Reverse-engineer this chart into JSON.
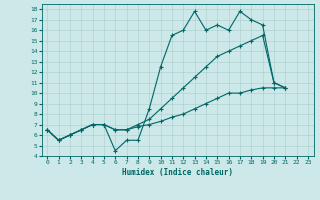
{
  "xlabel": "Humidex (Indice chaleur)",
  "bg_color": "#cce8e8",
  "line_color": "#006666",
  "grid_color": "#aacccc",
  "xlim": [
    -0.5,
    23.5
  ],
  "ylim": [
    4,
    18.5
  ],
  "yticks": [
    4,
    5,
    6,
    7,
    8,
    9,
    10,
    11,
    12,
    13,
    14,
    15,
    16,
    17,
    18
  ],
  "xticks": [
    0,
    1,
    2,
    3,
    4,
    5,
    6,
    7,
    8,
    9,
    10,
    11,
    12,
    13,
    14,
    15,
    16,
    17,
    18,
    19,
    20,
    21,
    22,
    23
  ],
  "series1_x": [
    0,
    1,
    2,
    3,
    4,
    5,
    6,
    7,
    8,
    9,
    10,
    11,
    12,
    13,
    14,
    15,
    16,
    17,
    18,
    19,
    20,
    21
  ],
  "series1_y": [
    6.5,
    5.5,
    6.0,
    6.5,
    7.0,
    7.0,
    4.5,
    5.5,
    5.5,
    8.5,
    12.5,
    15.5,
    16.0,
    17.8,
    16.0,
    16.5,
    16.0,
    17.8,
    17.0,
    16.5,
    11.0,
    10.5
  ],
  "series2_x": [
    0,
    1,
    2,
    3,
    4,
    5,
    6,
    7,
    8,
    9,
    10,
    11,
    12,
    13,
    14,
    15,
    16,
    17,
    18,
    19,
    20,
    21
  ],
  "series2_y": [
    6.5,
    5.5,
    6.0,
    6.5,
    7.0,
    7.0,
    6.5,
    6.5,
    7.0,
    7.5,
    8.5,
    9.5,
    10.5,
    11.5,
    12.5,
    13.5,
    14.0,
    14.5,
    15.0,
    15.5,
    11.0,
    10.5
  ],
  "series3_x": [
    0,
    1,
    2,
    3,
    4,
    5,
    6,
    7,
    8,
    9,
    10,
    11,
    12,
    13,
    14,
    15,
    16,
    17,
    18,
    19,
    20,
    21
  ],
  "series3_y": [
    6.5,
    5.5,
    6.0,
    6.5,
    7.0,
    7.0,
    6.5,
    6.5,
    6.8,
    7.0,
    7.3,
    7.7,
    8.0,
    8.5,
    9.0,
    9.5,
    10.0,
    10.0,
    10.3,
    10.5,
    10.5,
    10.5
  ]
}
